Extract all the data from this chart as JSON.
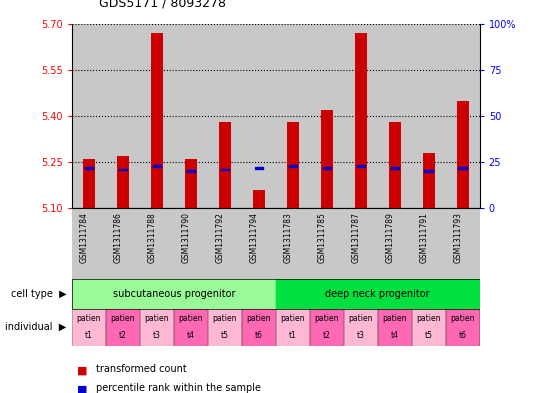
{
  "title": "GDS5171 / 8093278",
  "samples": [
    "GSM1311784",
    "GSM1311786",
    "GSM1311788",
    "GSM1311790",
    "GSM1311792",
    "GSM1311794",
    "GSM1311783",
    "GSM1311785",
    "GSM1311787",
    "GSM1311789",
    "GSM1311791",
    "GSM1311793"
  ],
  "transformed_count": [
    5.26,
    5.27,
    5.67,
    5.26,
    5.38,
    5.16,
    5.38,
    5.42,
    5.67,
    5.38,
    5.28,
    5.45
  ],
  "percentile_rank": [
    22,
    21,
    23,
    20,
    21,
    22,
    23,
    22,
    23,
    22,
    20,
    22
  ],
  "ymin": 5.1,
  "ymax": 5.7,
  "yticks": [
    5.1,
    5.25,
    5.4,
    5.55,
    5.7
  ],
  "right_yticks": [
    0,
    25,
    50,
    75,
    100
  ],
  "cell_types": [
    "subcutaneous progenitor",
    "deep neck progenitor"
  ],
  "cell_type_colors": [
    "#98fb98",
    "#00e040"
  ],
  "individual_colors_subcutaneous": [
    "#ffaacc",
    "#ff69b4",
    "#ffaacc",
    "#ff69b4",
    "#ffaacc",
    "#ff69b4"
  ],
  "individual_colors_deep": [
    "#ffaacc",
    "#ff69b4",
    "#ffaacc",
    "#ff69b4",
    "#ffaacc",
    "#ff69b4"
  ],
  "bar_color": "#cc0000",
  "percentile_color": "#0000cc",
  "col_bg_color": "#c8c8c8",
  "white_bg": "#ffffff",
  "legend_red": "transformed count",
  "legend_blue": "percentile rank within the sample",
  "label_fontsize": 7,
  "tick_fontsize": 7,
  "sample_fontsize": 5.5
}
